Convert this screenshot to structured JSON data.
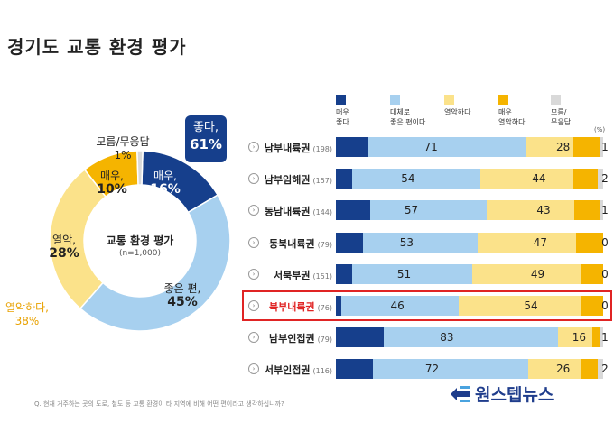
{
  "title": "경기도 교통 환경 평가",
  "donut": {
    "center_title": "교통 환경 평가",
    "center_sub": "(n=1,000)",
    "good_badge": {
      "label": "좋다,",
      "value": "61%"
    },
    "bad_summary": {
      "label": "열악하다,",
      "value": "38%"
    },
    "segments": [
      {
        "key": "very_good",
        "label": "매우,",
        "value_text": "16%",
        "value": 16,
        "color": "#163f8c"
      },
      {
        "key": "somewhat_good",
        "label": "좋은 편,",
        "value_text": "45%",
        "value": 45,
        "color": "#a7d0ef"
      },
      {
        "key": "somewhat_poor",
        "label": "열악,",
        "value_text": "28%",
        "value": 28,
        "color": "#fbe28a"
      },
      {
        "key": "very_poor",
        "label": "매우,",
        "value_text": "10%",
        "value": 10,
        "color": "#f5b400"
      },
      {
        "key": "dk",
        "label": "모름/무응답",
        "value_text": "1%",
        "value": 1,
        "color": "#d9d9d9"
      }
    ]
  },
  "legend": [
    {
      "label": "매우\n좋다",
      "color": "#163f8c"
    },
    {
      "label": "대체로\n좋은 편이다",
      "color": "#a7d0ef"
    },
    {
      "label": "열악하다",
      "color": "#fbe28a"
    },
    {
      "label": "매우\n열악하다",
      "color": "#f5b400"
    },
    {
      "label": "모름/\n무응답",
      "color": "#d9d9d9"
    }
  ],
  "pct_unit": "(%)",
  "chart_data": {
    "type": "bar",
    "orientation": "horizontal-stacked",
    "categories": [
      "남부내륙권",
      "남부임해권",
      "동남내륙권",
      "동북내륙권",
      "서북부권",
      "북부내륙권",
      "남부인접권",
      "서부인접권"
    ],
    "sample_sizes": [
      "(198)",
      "(157)",
      "(144)",
      "(79)",
      "(151)",
      "(76)",
      "(79)",
      "(116)"
    ],
    "good_total": [
      71,
      54,
      57,
      53,
      51,
      46,
      83,
      72
    ],
    "poor_total": [
      28,
      44,
      43,
      47,
      49,
      54,
      16,
      26
    ],
    "dk": [
      1,
      2,
      1,
      0,
      0,
      0,
      1,
      2
    ],
    "very_good_share": [
      12,
      6,
      13,
      10,
      6,
      2,
      18,
      14
    ],
    "very_poor_share": [
      10,
      9,
      10,
      10,
      8,
      8,
      3,
      6
    ],
    "highlighted": "북부내륙권"
  },
  "footnote": "Q. 현재 거주하는 곳의 도로, 철도 등 교통 환경이 타 지역에 비해 어떤 편이라고 생각하십니까?",
  "logo": "원스텝뉴스"
}
